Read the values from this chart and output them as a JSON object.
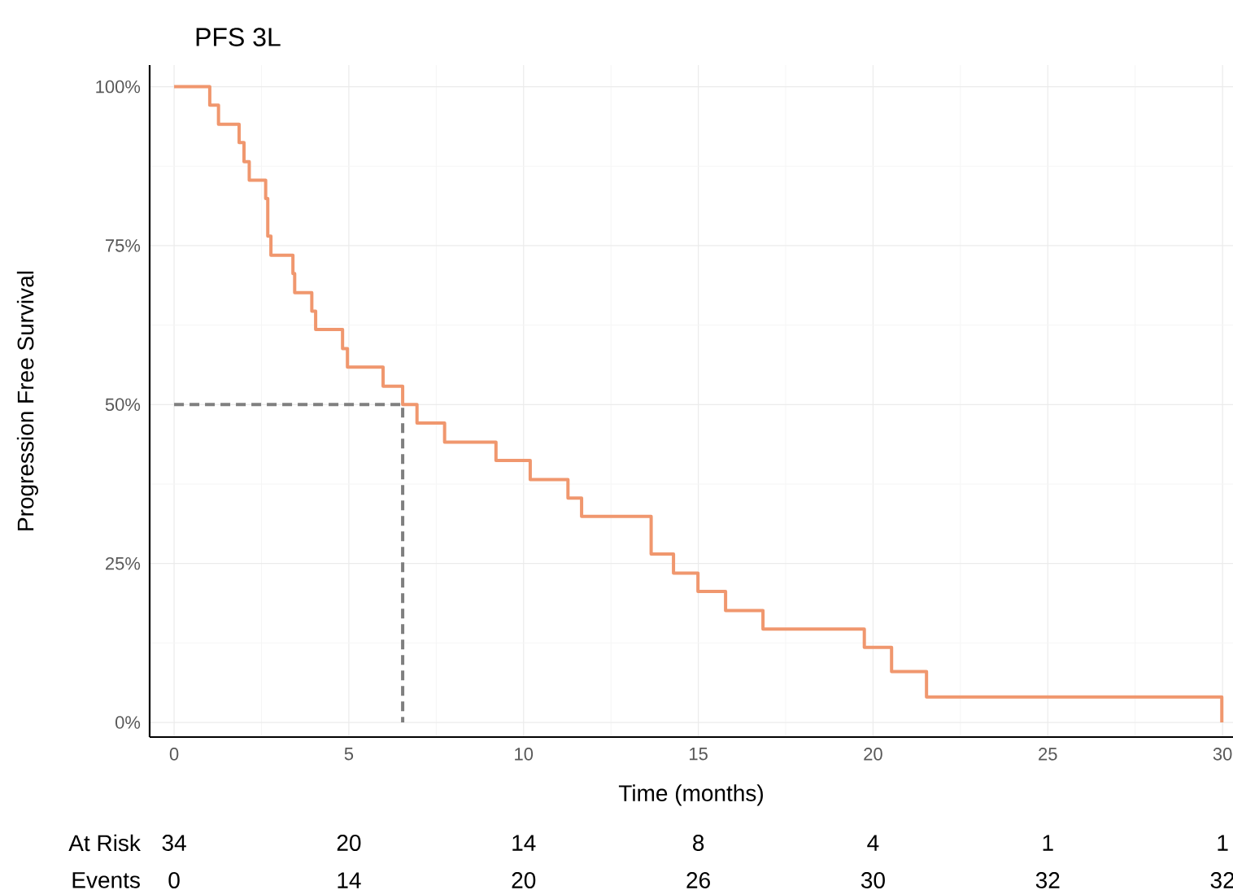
{
  "chart_data": [
    {
      "type": "step",
      "title": "PFS 3L",
      "xlabel": "Time (months)",
      "ylabel": "Progression Free Survival",
      "xlim": [
        -0.7,
        30.3
      ],
      "ylim": [
        -2.3,
        103.4
      ],
      "xticks": [
        0,
        5,
        10,
        15,
        20,
        25,
        30
      ],
      "yticks": [
        {
          "value": 0,
          "label": "0%"
        },
        {
          "value": 25,
          "label": "25%"
        },
        {
          "value": 50,
          "label": "50%"
        },
        {
          "value": 75,
          "label": "75%"
        },
        {
          "value": 100,
          "label": "100%"
        }
      ],
      "grid": true,
      "series": [
        {
          "type": "step",
          "color": "#f0976e",
          "x": [
            0,
            1.02,
            1.27,
            1.86,
            2.0,
            2.15,
            2.62,
            2.68,
            2.77,
            3.4,
            3.45,
            3.94,
            4.05,
            4.82,
            4.96,
            5.98,
            6.54,
            6.95,
            7.74,
            9.21,
            10.19,
            11.27,
            11.66,
            13.65,
            14.29,
            14.99,
            15.78,
            16.85,
            19.75,
            20.53,
            21.53,
            29.98
          ],
          "values": [
            100,
            97.1,
            94.1,
            91.2,
            88.2,
            85.3,
            82.4,
            76.5,
            73.5,
            70.6,
            67.6,
            64.7,
            61.8,
            58.8,
            55.9,
            52.9,
            50,
            47.1,
            44.1,
            41.2,
            38.2,
            35.3,
            32.4,
            26.5,
            23.5,
            20.6,
            17.6,
            14.7,
            11.8,
            8.0,
            4.0,
            0
          ]
        },
        {
          "type": "line",
          "color": "#7f7f7f",
          "line_style": "dashed",
          "x": [
            0,
            6.54,
            6.54
          ],
          "values": [
            50,
            50,
            0
          ]
        }
      ]
    },
    {
      "type": "other",
      "y_categories": [
        "At Risk",
        "Events"
      ],
      "cells": [
        [
          "34",
          "20",
          "14",
          "8",
          "4",
          "1",
          "1"
        ],
        [
          "0",
          "14",
          "20",
          "26",
          "30",
          "32",
          "32"
        ]
      ]
    }
  ]
}
